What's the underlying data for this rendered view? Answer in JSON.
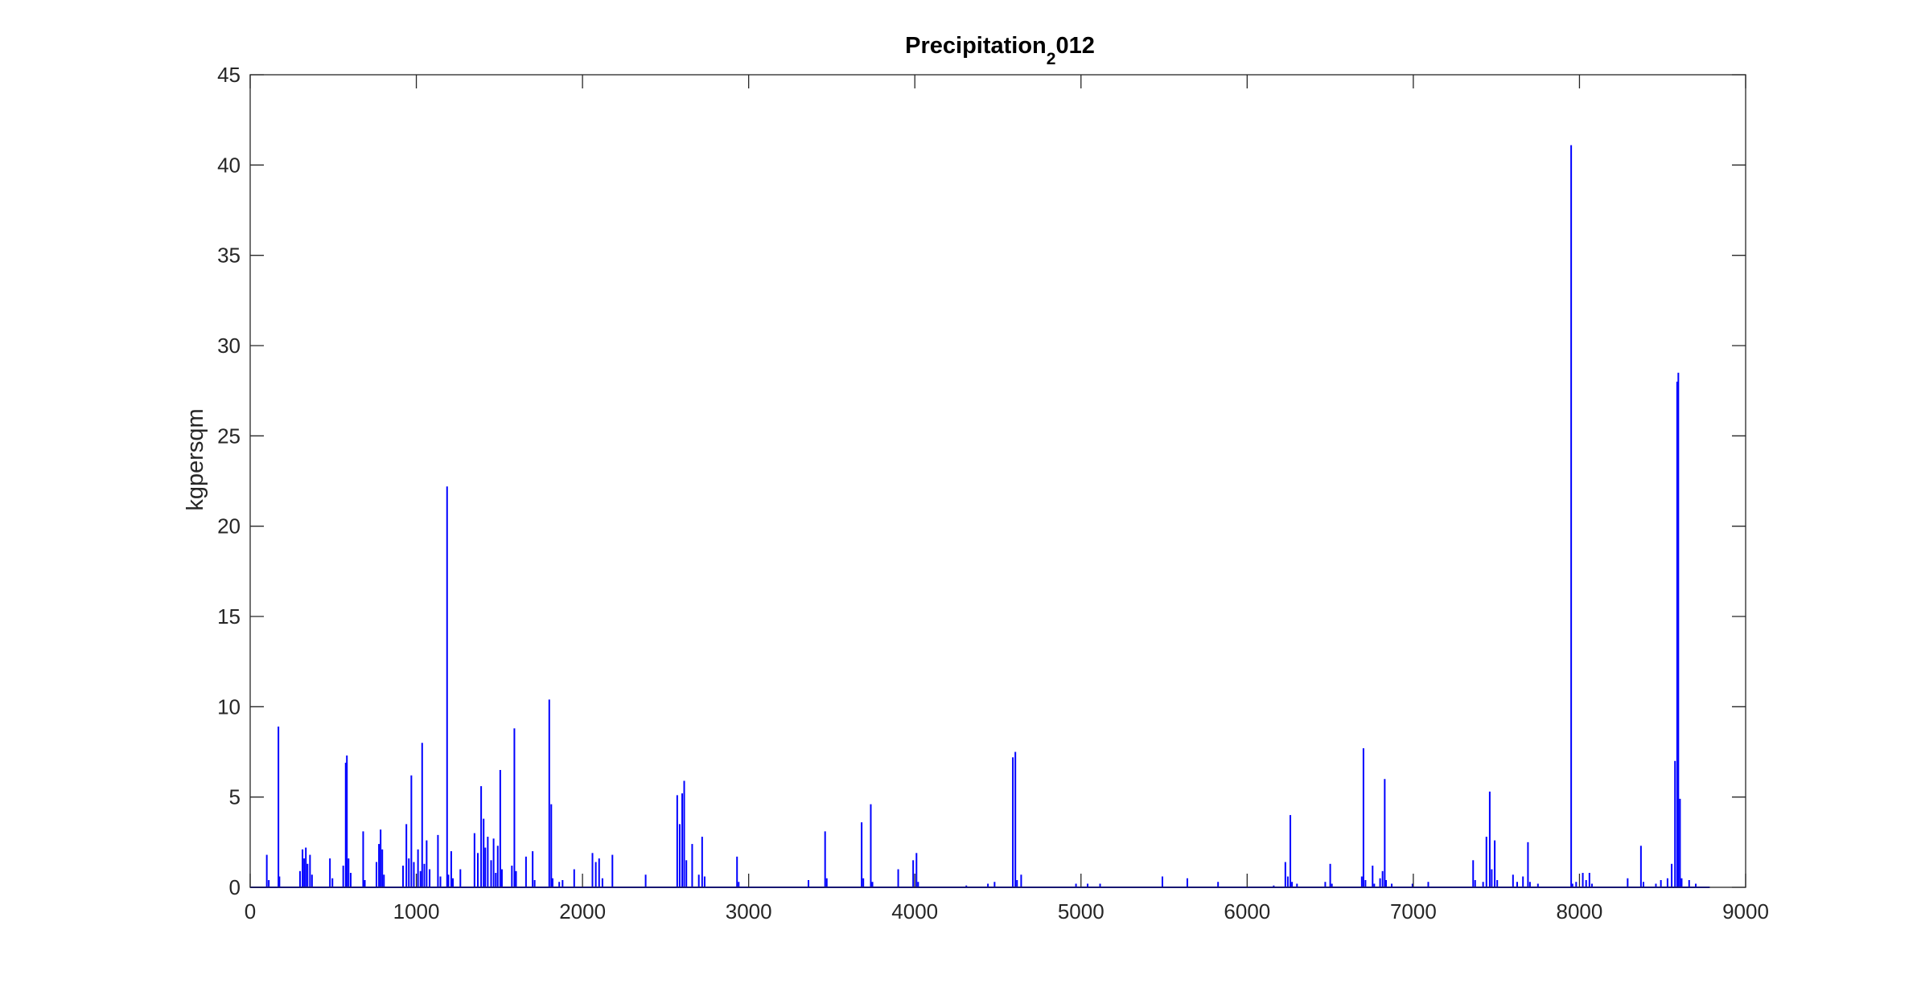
{
  "chart_data": {
    "type": "line",
    "title_main": "Precipitation",
    "title_sub": "2",
    "title_rest": "012",
    "xlabel": "",
    "ylabel": "kgpersqm",
    "xlim": [
      0,
      9000
    ],
    "ylim": [
      0,
      45
    ],
    "xticks": [
      0,
      1000,
      2000,
      3000,
      4000,
      5000,
      6000,
      7000,
      8000,
      9000
    ],
    "yticks": [
      0,
      5,
      10,
      15,
      20,
      25,
      30,
      35,
      40,
      45
    ],
    "grid": false,
    "line_color": "#0000ff",
    "x_end": 8784,
    "series": [
      {
        "values": [
          [
            100,
            1.8
          ],
          [
            112,
            0.4
          ],
          [
            170,
            8.9
          ],
          [
            176,
            0.6
          ],
          [
            300,
            0.9
          ],
          [
            315,
            2.1
          ],
          [
            325,
            1.6
          ],
          [
            335,
            2.2
          ],
          [
            345,
            1.3
          ],
          [
            360,
            1.8
          ],
          [
            372,
            0.7
          ],
          [
            480,
            1.6
          ],
          [
            495,
            0.5
          ],
          [
            560,
            1.2
          ],
          [
            575,
            6.9
          ],
          [
            582,
            7.3
          ],
          [
            592,
            1.6
          ],
          [
            605,
            0.8
          ],
          [
            680,
            3.1
          ],
          [
            690,
            0.4
          ],
          [
            760,
            1.4
          ],
          [
            775,
            2.4
          ],
          [
            785,
            3.2
          ],
          [
            795,
            2.1
          ],
          [
            805,
            0.7
          ],
          [
            920,
            1.2
          ],
          [
            940,
            3.5
          ],
          [
            955,
            1.6
          ],
          [
            970,
            6.2
          ],
          [
            985,
            1.4
          ],
          [
            1010,
            2.1
          ],
          [
            1025,
            0.9
          ],
          [
            1035,
            8.0
          ],
          [
            1048,
            1.3
          ],
          [
            1062,
            2.6
          ],
          [
            1080,
            1.0
          ],
          [
            1130,
            2.9
          ],
          [
            1145,
            0.6
          ],
          [
            1185,
            22.2
          ],
          [
            1193,
            0.7
          ],
          [
            1210,
            2.0
          ],
          [
            1220,
            0.5
          ],
          [
            1265,
            1.0
          ],
          [
            1350,
            3.0
          ],
          [
            1370,
            1.9
          ],
          [
            1390,
            5.6
          ],
          [
            1405,
            3.8
          ],
          [
            1415,
            2.2
          ],
          [
            1430,
            2.8
          ],
          [
            1450,
            1.5
          ],
          [
            1465,
            2.7
          ],
          [
            1478,
            0.8
          ],
          [
            1490,
            2.3
          ],
          [
            1505,
            6.5
          ],
          [
            1515,
            1.0
          ],
          [
            1575,
            1.2
          ],
          [
            1590,
            8.8
          ],
          [
            1600,
            0.9
          ],
          [
            1660,
            1.7
          ],
          [
            1700,
            2.0
          ],
          [
            1712,
            0.4
          ],
          [
            1800,
            10.4
          ],
          [
            1812,
            4.6
          ],
          [
            1820,
            0.5
          ],
          [
            1860,
            0.3
          ],
          [
            1880,
            0.4
          ],
          [
            1950,
            1.0
          ],
          [
            2060,
            1.9
          ],
          [
            2080,
            1.4
          ],
          [
            2100,
            1.6
          ],
          [
            2120,
            0.5
          ],
          [
            2180,
            1.8
          ],
          [
            2380,
            0.7
          ],
          [
            2570,
            5.1
          ],
          [
            2585,
            3.5
          ],
          [
            2600,
            5.2
          ],
          [
            2612,
            5.9
          ],
          [
            2625,
            1.5
          ],
          [
            2660,
            2.4
          ],
          [
            2700,
            0.7
          ],
          [
            2720,
            2.8
          ],
          [
            2735,
            0.6
          ],
          [
            2930,
            1.7
          ],
          [
            2940,
            0.3
          ],
          [
            3360,
            0.4
          ],
          [
            3460,
            3.1
          ],
          [
            3470,
            0.5
          ],
          [
            3680,
            3.6
          ],
          [
            3690,
            0.5
          ],
          [
            3735,
            4.6
          ],
          [
            3745,
            0.3
          ],
          [
            3900,
            1.0
          ],
          [
            3990,
            1.5
          ],
          [
            4010,
            1.9
          ],
          [
            4020,
            0.3
          ],
          [
            4310,
            0.1
          ],
          [
            4440,
            0.2
          ],
          [
            4480,
            0.3
          ],
          [
            4590,
            7.2
          ],
          [
            4605,
            7.5
          ],
          [
            4615,
            0.4
          ],
          [
            4640,
            0.7
          ],
          [
            4970,
            0.2
          ],
          [
            5040,
            0.2
          ],
          [
            5115,
            0.2
          ],
          [
            5490,
            0.6
          ],
          [
            5640,
            0.5
          ],
          [
            5825,
            0.3
          ],
          [
            6160,
            0.1
          ],
          [
            6230,
            1.4
          ],
          [
            6245,
            0.6
          ],
          [
            6260,
            4.0
          ],
          [
            6270,
            0.3
          ],
          [
            6300,
            0.2
          ],
          [
            6470,
            0.3
          ],
          [
            6500,
            1.3
          ],
          [
            6510,
            0.2
          ],
          [
            6690,
            0.6
          ],
          [
            6700,
            7.7
          ],
          [
            6712,
            0.4
          ],
          [
            6755,
            1.2
          ],
          [
            6765,
            0.2
          ],
          [
            6800,
            0.5
          ],
          [
            6815,
            0.9
          ],
          [
            6828,
            6.0
          ],
          [
            6836,
            0.4
          ],
          [
            6870,
            0.2
          ],
          [
            6995,
            0.2
          ],
          [
            7090,
            0.3
          ],
          [
            7360,
            1.5
          ],
          [
            7372,
            0.4
          ],
          [
            7420,
            0.3
          ],
          [
            7440,
            2.8
          ],
          [
            7460,
            5.3
          ],
          [
            7472,
            1.0
          ],
          [
            7490,
            2.6
          ],
          [
            7505,
            0.4
          ],
          [
            7600,
            0.7
          ],
          [
            7625,
            0.3
          ],
          [
            7660,
            0.6
          ],
          [
            7690,
            2.5
          ],
          [
            7702,
            0.3
          ],
          [
            7750,
            0.2
          ],
          [
            7950,
            41.1
          ],
          [
            7958,
            0.2
          ],
          [
            7980,
            0.3
          ],
          [
            8020,
            0.8
          ],
          [
            8040,
            0.4
          ],
          [
            8060,
            0.8
          ],
          [
            8075,
            0.2
          ],
          [
            8290,
            0.5
          ],
          [
            8370,
            2.3
          ],
          [
            8385,
            0.3
          ],
          [
            8460,
            0.2
          ],
          [
            8490,
            0.4
          ],
          [
            8530,
            0.5
          ],
          [
            8555,
            1.3
          ],
          [
            8575,
            7.0
          ],
          [
            8588,
            28.0
          ],
          [
            8595,
            28.5
          ],
          [
            8605,
            4.9
          ],
          [
            8615,
            0.5
          ],
          [
            8660,
            0.4
          ],
          [
            8700,
            0.2
          ]
        ]
      }
    ]
  }
}
